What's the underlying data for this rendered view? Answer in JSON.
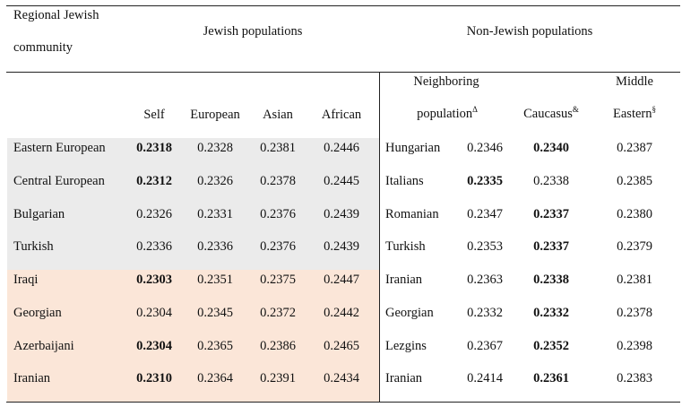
{
  "header": {
    "community_line1": "Regional Jewish",
    "community_line2": "community",
    "jewish_group": "Jewish populations",
    "nonjewish_group": "Non-Jewish populations",
    "self": "Self",
    "european": "European",
    "asian": "Asian",
    "african": "African",
    "neighboring_line1": "Neighboring",
    "neighboring_line2": "population",
    "neighboring_sup": "Δ",
    "caucasus": "Caucasus",
    "caucasus_sup": "&",
    "middle_line1": "Middle",
    "middle_line2": "Eastern",
    "middle_sup": "§"
  },
  "colors": {
    "gray_band": "#ebebeb",
    "peach_band": "#fbe6d8"
  },
  "rows": [
    {
      "community": "Eastern European",
      "self": "0.2318",
      "european": "0.2328",
      "asian": "0.2381",
      "african": "0.2446",
      "neighbor_name": "Hungarian",
      "neighbor_value": "0.2346",
      "caucasus": "0.2340",
      "middle_eastern": "0.2387"
    },
    {
      "community": "Central European",
      "self": "0.2312",
      "european": "0.2326",
      "asian": "0.2378",
      "african": "0.2445",
      "neighbor_name": "Italians",
      "neighbor_value": "0.2335",
      "caucasus": "0.2338",
      "middle_eastern": "0.2385"
    },
    {
      "community": "Bulgarian",
      "self": "0.2326",
      "european": "0.2331",
      "asian": "0.2376",
      "african": "0.2439",
      "neighbor_name": "Romanian",
      "neighbor_value": "0.2347",
      "caucasus": "0.2337",
      "middle_eastern": "0.2380"
    },
    {
      "community": "Turkish",
      "self": "0.2336",
      "european": "0.2336",
      "asian": "0.2376",
      "african": "0.2439",
      "neighbor_name": "Turkish",
      "neighbor_value": "0.2353",
      "caucasus": "0.2337",
      "middle_eastern": "0.2379"
    },
    {
      "community": "Iraqi",
      "self": "0.2303",
      "european": "0.2351",
      "asian": "0.2375",
      "african": "0.2447",
      "neighbor_name": "Iranian",
      "neighbor_value": "0.2363",
      "caucasus": "0.2338",
      "middle_eastern": "0.2381"
    },
    {
      "community": "Georgian",
      "self": "0.2304",
      "european": "0.2345",
      "asian": "0.2372",
      "african": "0.2442",
      "neighbor_name": "Georgian",
      "neighbor_value": "0.2332",
      "caucasus": "0.2332",
      "middle_eastern": "0.2378"
    },
    {
      "community": "Azerbaijani",
      "self": "0.2304",
      "european": "0.2365",
      "asian": "0.2386",
      "african": "0.2465",
      "neighbor_name": "Lezgins",
      "neighbor_value": "0.2367",
      "caucasus": "0.2352",
      "middle_eastern": "0.2398"
    },
    {
      "community": "Iranian",
      "self": "0.2310",
      "european": "0.2364",
      "asian": "0.2391",
      "african": "0.2434",
      "neighbor_name": "Iranian",
      "neighbor_value": "0.2414",
      "caucasus": "0.2361",
      "middle_eastern": "0.2383"
    }
  ]
}
